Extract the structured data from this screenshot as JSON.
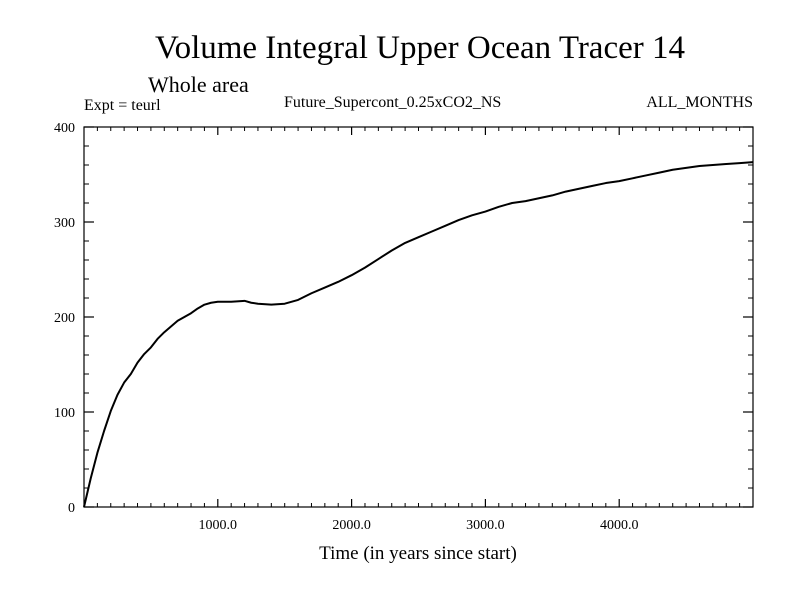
{
  "chart_data": {
    "type": "line",
    "title": "Volume Integral Upper Ocean Tracer 14",
    "subtitle": "Whole area",
    "experiment_label": "Expt = teurl",
    "run_label": "Future_Supercont_0.25xCO2_NS",
    "period_label": "ALL_MONTHS",
    "xlabel": "Time (in years since start)",
    "ylabel": "",
    "xlim": [
      0,
      5000
    ],
    "ylim": [
      0,
      400
    ],
    "x_ticks": [
      1000,
      2000,
      3000,
      4000
    ],
    "x_tick_labels": [
      "1000.0",
      "2000.0",
      "3000.0",
      "4000.0"
    ],
    "y_ticks": [
      0,
      100,
      200,
      300,
      400
    ],
    "y_tick_labels": [
      "0",
      "100",
      "200",
      "300",
      "400"
    ],
    "grid": false,
    "series": [
      {
        "color": "#000000",
        "x": [
          0,
          50,
          100,
          150,
          200,
          250,
          300,
          350,
          400,
          450,
          500,
          550,
          600,
          650,
          700,
          750,
          800,
          850,
          900,
          950,
          1000,
          1100,
          1200,
          1250,
          1300,
          1400,
          1500,
          1600,
          1700,
          1800,
          1900,
          2000,
          2100,
          2200,
          2300,
          2400,
          2500,
          2600,
          2700,
          2800,
          2900,
          3000,
          3100,
          3200,
          3300,
          3400,
          3500,
          3600,
          3700,
          3800,
          3900,
          4000,
          4100,
          4200,
          4300,
          4400,
          4500,
          4600,
          4700,
          4800,
          4900,
          5000
        ],
        "y": [
          0,
          30,
          57,
          80,
          101,
          118,
          131,
          140,
          152,
          161,
          168,
          177,
          184,
          190,
          196,
          200,
          204,
          209,
          213,
          215,
          216,
          216,
          217,
          215,
          214,
          213,
          214,
          218,
          225,
          231,
          237,
          244,
          252,
          261,
          270,
          278,
          284,
          290,
          296,
          302,
          307,
          311,
          316,
          320,
          322,
          325,
          328,
          332,
          335,
          338,
          341,
          343,
          346,
          349,
          352,
          355,
          357,
          359,
          360,
          361,
          362,
          363
        ]
      }
    ]
  }
}
